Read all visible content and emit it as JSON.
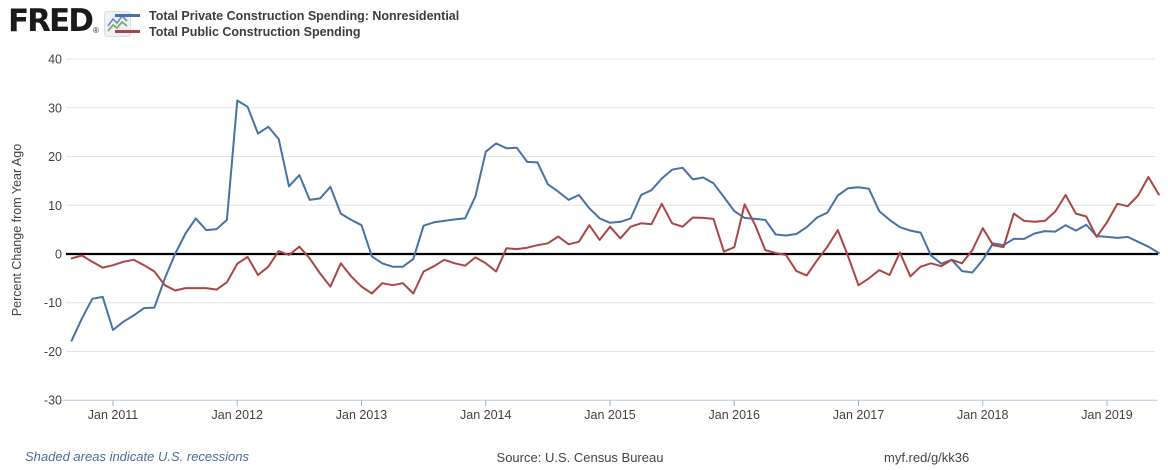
{
  "header": {
    "logo_text": "FRED",
    "logo_registered": "®",
    "sparkline_icon": "fred-sparkline-icon",
    "legend": [
      {
        "label": "Total Private Construction Spending: Nonresidential",
        "color": "#4572a7"
      },
      {
        "label": "Total Public Construction Spending",
        "color": "#aa4643"
      }
    ]
  },
  "chart_data": {
    "type": "line",
    "title": "",
    "xlabel": "",
    "ylabel": "Percent Change from Year Ago",
    "ylim": [
      -30,
      40
    ],
    "yticks": [
      40,
      30,
      20,
      10,
      0,
      -10,
      -20,
      -30
    ],
    "grid": "horizontal",
    "zero_line": true,
    "legend_position": "top",
    "x_start_month": "2010-09",
    "x_end_month": "2019-06",
    "x_tick_labels": [
      "Jan 2011",
      "Jan 2012",
      "Jan 2013",
      "Jan 2014",
      "Jan 2015",
      "Jan 2016",
      "Jan 2017",
      "Jan 2018",
      "Jan 2019"
    ],
    "series": [
      {
        "name": "Total Private Construction Spending: Nonresidential",
        "color": "#4572a7",
        "values": [
          -17.8,
          -13.2,
          -9.2,
          -8.8,
          -15.6,
          -13.9,
          -12.6,
          -11.1,
          -11.0,
          -5.0,
          0.0,
          4.2,
          7.3,
          4.9,
          5.1,
          7.0,
          31.5,
          30.2,
          24.7,
          26.1,
          23.6,
          13.9,
          16.2,
          11.1,
          11.4,
          13.8,
          8.3,
          7.0,
          5.9,
          -0.5,
          -1.9,
          -2.6,
          -2.6,
          -1.0,
          5.8,
          6.5,
          6.8,
          7.1,
          7.3,
          11.8,
          21.0,
          22.7,
          21.7,
          21.8,
          18.9,
          18.8,
          14.3,
          12.8,
          11.1,
          12.1,
          9.4,
          7.3,
          6.4,
          6.6,
          7.3,
          12.1,
          13.1,
          15.5,
          17.3,
          17.7,
          15.3,
          15.7,
          14.5,
          11.7,
          8.8,
          7.4,
          7.2,
          7.0,
          4.0,
          3.8,
          4.1,
          5.5,
          7.5,
          8.5,
          12.0,
          13.5,
          13.7,
          13.4,
          8.8,
          7.0,
          5.5,
          4.8,
          4.4,
          -0.3,
          -2.0,
          -1.2,
          -3.5,
          -3.8,
          -1.2,
          2.2,
          1.8,
          3.1,
          3.1,
          4.2,
          4.7,
          4.6,
          5.9,
          4.8,
          6.0,
          3.7,
          3.5,
          3.3,
          3.5,
          2.5,
          1.5,
          0.2
        ]
      },
      {
        "name": "Total Public Construction Spending",
        "color": "#aa4643",
        "values": [
          -0.9,
          -0.3,
          -1.6,
          -2.8,
          -2.3,
          -1.6,
          -1.2,
          -2.3,
          -3.6,
          -6.4,
          -7.5,
          -7.0,
          -7.0,
          -7.0,
          -7.3,
          -5.8,
          -2.0,
          -0.6,
          -4.3,
          -2.6,
          0.6,
          -0.2,
          1.5,
          -0.9,
          -4.0,
          -6.7,
          -1.9,
          -4.6,
          -6.7,
          -8.1,
          -6.0,
          -6.4,
          -6.0,
          -8.1,
          -3.6,
          -2.5,
          -1.2,
          -1.9,
          -2.4,
          -0.7,
          -1.9,
          -3.6,
          1.2,
          1.0,
          1.3,
          1.8,
          2.2,
          3.6,
          2.0,
          2.5,
          5.9,
          2.9,
          5.6,
          3.2,
          5.6,
          6.3,
          6.1,
          10.3,
          6.3,
          5.6,
          7.5,
          7.4,
          7.2,
          0.5,
          1.4,
          10.2,
          6.0,
          0.8,
          0.2,
          -0.2,
          -3.5,
          -4.4,
          -1.3,
          1.5,
          4.9,
          -0.5,
          -6.4,
          -5.0,
          -3.3,
          -4.3,
          0.3,
          -4.6,
          -2.6,
          -1.9,
          -2.5,
          -1.2,
          -1.9,
          0.8,
          5.3,
          1.8,
          1.4,
          8.3,
          6.8,
          6.6,
          6.8,
          8.7,
          12.1,
          8.3,
          7.7,
          3.5,
          6.5,
          10.3,
          9.8,
          12.0,
          15.8,
          12.2
        ]
      }
    ]
  },
  "footer": {
    "note": "Shaded areas indicate U.S. recessions",
    "source": "Source: U.S. Census Bureau",
    "link": "myf.red/g/kk36"
  }
}
